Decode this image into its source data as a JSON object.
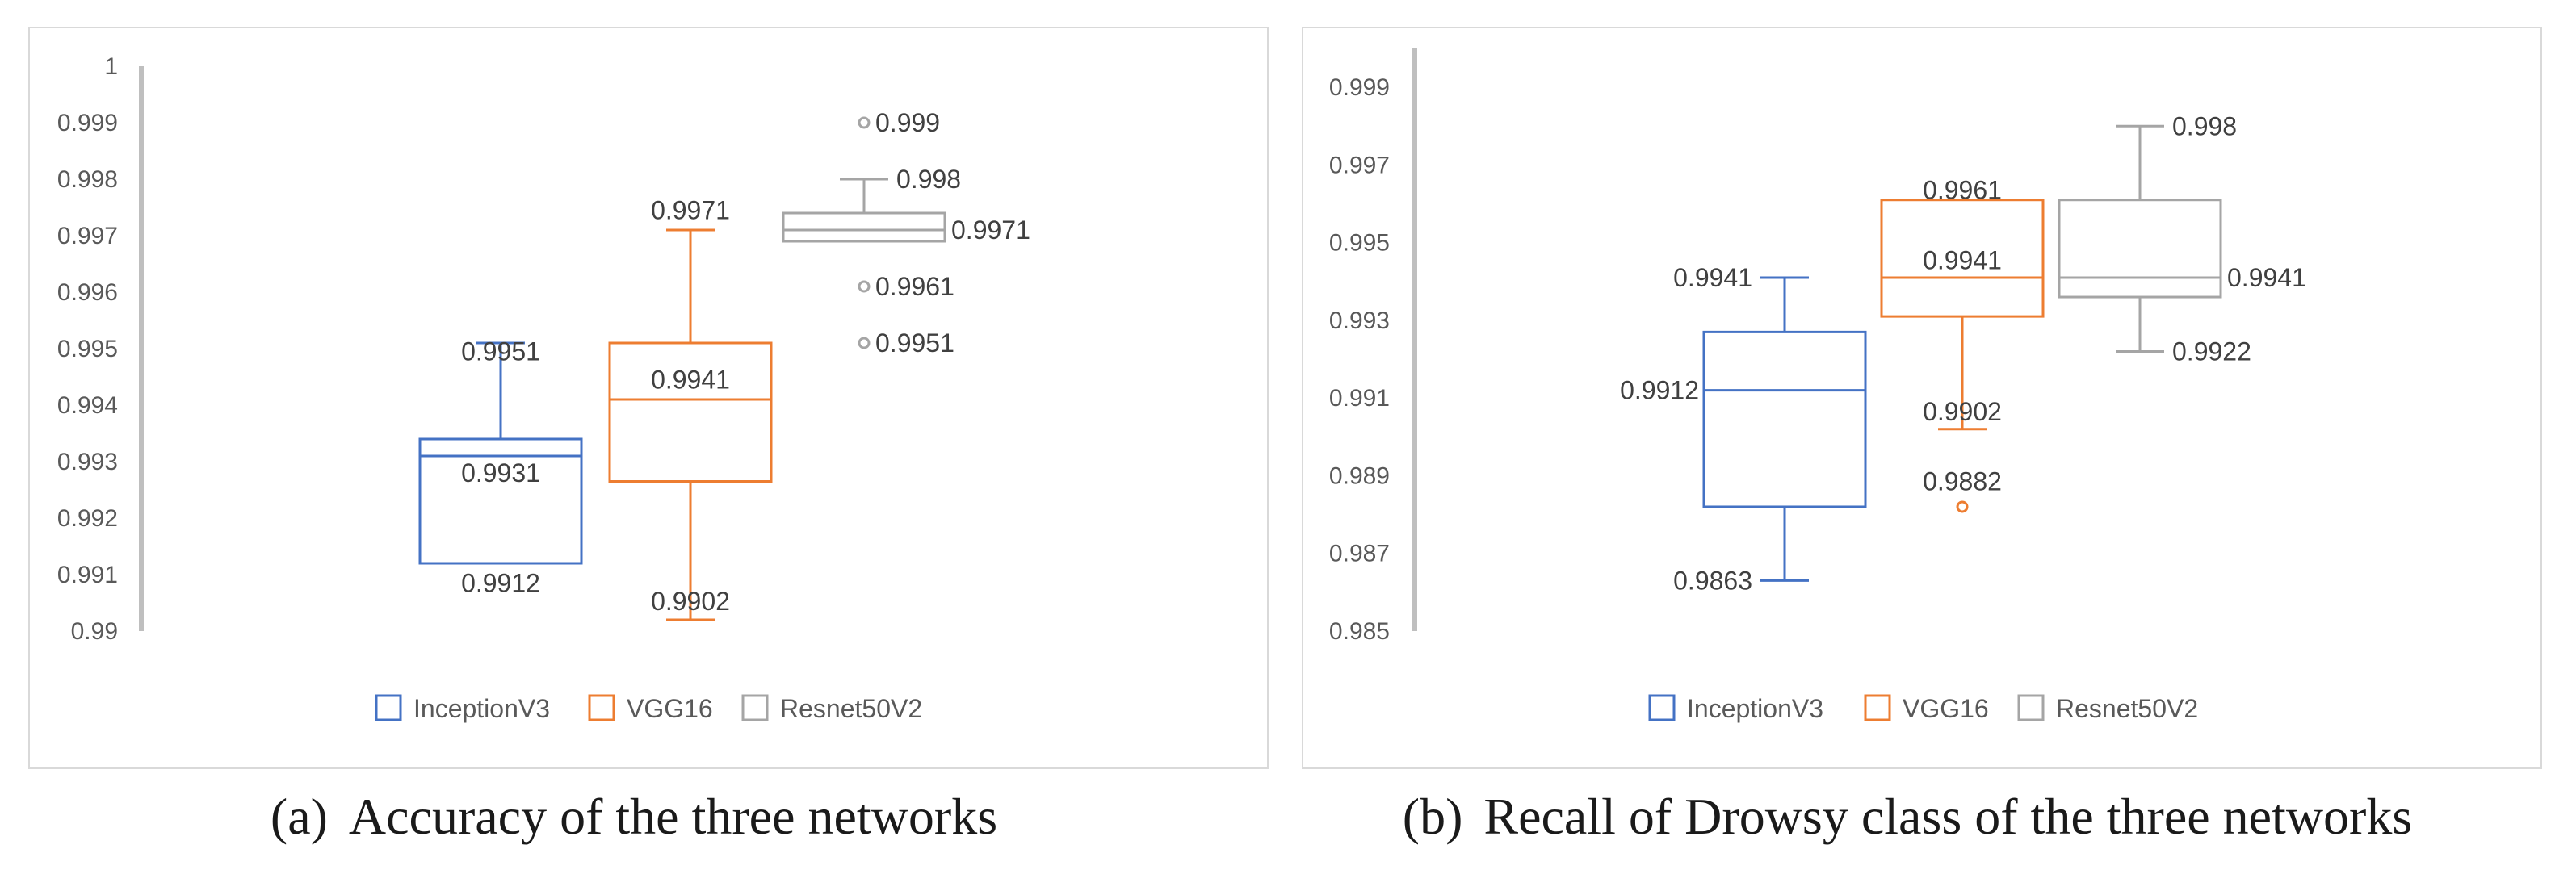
{
  "colors": {
    "InceptionV3": "#4472C4",
    "VGG16": "#ED7D31",
    "Resnet50V2": "#A5A5A5",
    "axis": "#BFBFBF",
    "frame": "#D9D9D9"
  },
  "chart_data": [
    {
      "type": "box",
      "caption_tag": "(a)",
      "caption_text": "Accuracy of the three networks",
      "ylim": [
        0.99,
        1.0
      ],
      "yticks": [
        {
          "v": 0.99,
          "label": "0.99"
        },
        {
          "v": 0.991,
          "label": "0.991"
        },
        {
          "v": 0.992,
          "label": "0.992"
        },
        {
          "v": 0.993,
          "label": "0.993"
        },
        {
          "v": 0.994,
          "label": "0.994"
        },
        {
          "v": 0.995,
          "label": "0.995"
        },
        {
          "v": 0.996,
          "label": "0.996"
        },
        {
          "v": 0.997,
          "label": "0.997"
        },
        {
          "v": 0.998,
          "label": "0.998"
        },
        {
          "v": 0.999,
          "label": "0.999"
        },
        {
          "v": 1.0,
          "label": "1"
        }
      ],
      "legend": [
        "InceptionV3",
        "VGG16",
        "Resnet50V2"
      ],
      "series": [
        {
          "name": "InceptionV3",
          "whisker_low": 0.9912,
          "q1": 0.9912,
          "median": 0.9931,
          "q3": 0.9934,
          "whisker_high": 0.9951,
          "outliers": [],
          "labels": [
            {
              "text": "0.9951",
              "v": 0.99495,
              "pos": "center"
            },
            {
              "text": "0.9931",
              "v": 0.9928,
              "pos": "center"
            },
            {
              "text": "0.9912",
              "v": 0.99085,
              "pos": "center"
            }
          ]
        },
        {
          "name": "VGG16",
          "whisker_low": 0.9902,
          "q1": 0.99265,
          "median": 0.9941,
          "q3": 0.9951,
          "whisker_high": 0.9971,
          "outliers": [],
          "labels": [
            {
              "text": "0.9971",
              "v": 0.99745,
              "pos": "center"
            },
            {
              "text": "0.9941",
              "v": 0.99445,
              "pos": "center"
            },
            {
              "text": "0.9902",
              "v": 0.99053,
              "pos": "center"
            }
          ]
        },
        {
          "name": "Resnet50V2",
          "whisker_low": 0.9969,
          "q1": 0.9969,
          "median": 0.9971,
          "q3": 0.9974,
          "whisker_high": 0.998,
          "outliers": [
            0.999,
            0.9961,
            0.9951
          ],
          "labels": [
            {
              "text": "0.999",
              "v": 0.999,
              "pos": "right-outlier"
            },
            {
              "text": "0.998",
              "v": 0.998,
              "pos": "right-whisker"
            },
            {
              "text": "0.9971",
              "v": 0.9971,
              "pos": "right-box"
            },
            {
              "text": "0.9961",
              "v": 0.9961,
              "pos": "right-outlier"
            },
            {
              "text": "0.9951",
              "v": 0.9951,
              "pos": "right-outlier"
            }
          ]
        }
      ]
    },
    {
      "type": "box",
      "caption_tag": "(b)",
      "caption_text": "Recall of Drowsy class of the three networks",
      "ylim": [
        0.985,
        1.0
      ],
      "yticks": [
        {
          "v": 0.985,
          "label": "0.985"
        },
        {
          "v": 0.987,
          "label": "0.987"
        },
        {
          "v": 0.989,
          "label": "0.989"
        },
        {
          "v": 0.991,
          "label": "0.991"
        },
        {
          "v": 0.993,
          "label": "0.993"
        },
        {
          "v": 0.995,
          "label": "0.995"
        },
        {
          "v": 0.997,
          "label": "0.997"
        },
        {
          "v": 0.999,
          "label": "0.999"
        }
      ],
      "legend": [
        "InceptionV3",
        "VGG16",
        "Resnet50V2"
      ],
      "series": [
        {
          "name": "InceptionV3",
          "whisker_low": 0.9863,
          "q1": 0.9882,
          "median": 0.9912,
          "q3": 0.9927,
          "whisker_high": 0.9941,
          "outliers": [],
          "labels": [
            {
              "text": "0.9941",
              "v": 0.9941,
              "pos": "left-whisker"
            },
            {
              "text": "0.9912",
              "v": 0.9912,
              "pos": "left-box"
            },
            {
              "text": "0.9863",
              "v": 0.9863,
              "pos": "left-whisker"
            }
          ]
        },
        {
          "name": "VGG16",
          "whisker_low": 0.9902,
          "q1": 0.9931,
          "median": 0.9941,
          "q3": 0.9961,
          "whisker_high": 0.9961,
          "outliers": [
            0.9882
          ],
          "labels": [
            {
              "text": "0.9961",
              "v": 0.99635,
              "pos": "center"
            },
            {
              "text": "0.9941",
              "v": 0.99455,
              "pos": "center"
            },
            {
              "text": "0.9902",
              "v": 0.99065,
              "pos": "center"
            },
            {
              "text": "0.9882",
              "v": 0.98885,
              "pos": "center"
            }
          ]
        },
        {
          "name": "Resnet50V2",
          "whisker_low": 0.9922,
          "q1": 0.9936,
          "median": 0.9941,
          "q3": 0.9961,
          "whisker_high": 0.998,
          "outliers": [],
          "labels": [
            {
              "text": "0.998",
              "v": 0.998,
              "pos": "right-whisker"
            },
            {
              "text": "0.9941",
              "v": 0.9941,
              "pos": "right-box"
            },
            {
              "text": "0.9922",
              "v": 0.9922,
              "pos": "right-whisker"
            }
          ]
        }
      ]
    }
  ]
}
